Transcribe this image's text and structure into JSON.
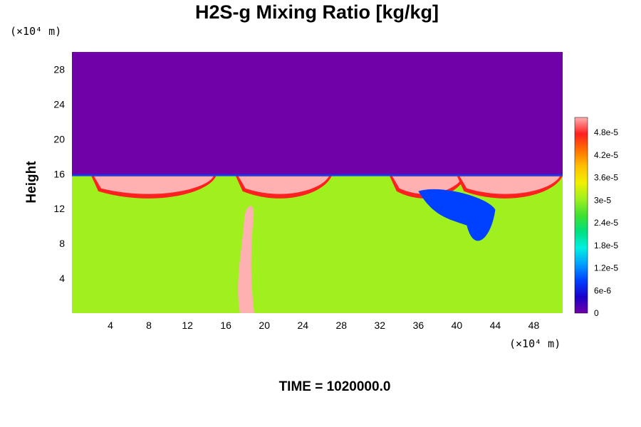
{
  "chart_data": {
    "type": "heatmap",
    "title": "H2S-g Mixing Ratio [kg/kg]",
    "ylabel": "Height",
    "x_unit_label": "(×10⁴ m)",
    "y_unit_label": "(×10⁴ m)",
    "x_ticks": [
      "4",
      "8",
      "12",
      "16",
      "20",
      "24",
      "28",
      "32",
      "36",
      "40",
      "44",
      "48"
    ],
    "y_ticks": [
      "4",
      "8",
      "12",
      "16",
      "20",
      "24",
      "28"
    ],
    "xlim": [
      0,
      51
    ],
    "ylim": [
      0,
      30
    ],
    "colorbar": {
      "ticks": [
        "0",
        "6e-6",
        "1.2e-5",
        "1.8e-5",
        "2.4e-5",
        "3e-5",
        "3.6e-5",
        "4.2e-5",
        "4.8e-5"
      ],
      "range": [
        0,
        5.2e-05
      ],
      "colors": [
        "#7000a8",
        "#1a00c8",
        "#0040ff",
        "#00a0ff",
        "#00f0e0",
        "#00e080",
        "#40e030",
        "#a0f020",
        "#f0f000",
        "#ffc000",
        "#ff7000",
        "#ff2020",
        "#ffb0b0"
      ]
    },
    "background_value": 3e-05,
    "top_value": 0,
    "interface_height": 15.8,
    "features": [
      {
        "kind": "rising_plume",
        "x": 18.5,
        "value": 5e-05
      },
      {
        "kind": "pink_blob",
        "x": [
          2,
          15
        ],
        "value": 5.2e-05
      },
      {
        "kind": "pink_blob",
        "x": [
          17,
          27
        ],
        "value": 5.2e-05
      },
      {
        "kind": "pink_blob",
        "x": [
          33,
          41
        ],
        "value": 5.2e-05
      },
      {
        "kind": "pink_blob",
        "x": [
          40,
          51
        ],
        "value": 5.2e-05
      },
      {
        "kind": "blue_intrusion",
        "x": [
          36,
          44
        ],
        "value": 8e-06
      }
    ]
  },
  "time_label": "TIME = 1020000.0"
}
